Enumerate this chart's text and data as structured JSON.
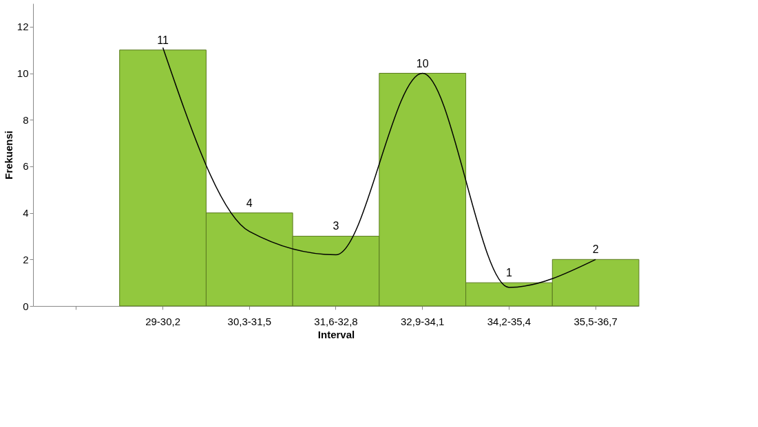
{
  "chart_data": {
    "type": "bar",
    "xlabel": "Interval",
    "ylabel": "Frekuensi",
    "categories": [
      null,
      "29-30,2",
      "30,3-31,5",
      "31,6-32,8",
      "32,9-34,1",
      "34,2-35,4",
      "35,5-36,7"
    ],
    "series": [
      {
        "color": "#92c83e",
        "values": [
          null,
          11,
          4,
          3,
          10,
          1,
          2
        ],
        "value_labels": [
          null,
          "11",
          "4",
          "3",
          "10",
          "1",
          "2"
        ]
      },
      {
        "type": "line",
        "color": "#000000",
        "values": [
          null,
          11.1,
          3.2,
          2.2,
          10,
          0.8,
          2
        ]
      }
    ],
    "ylim": [
      0,
      13
    ],
    "yticks": [
      0,
      2,
      4,
      6,
      8,
      10,
      12
    ],
    "grid": false
  }
}
